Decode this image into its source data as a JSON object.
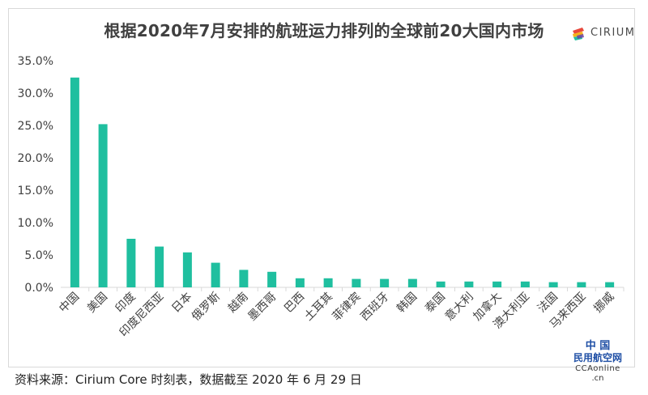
{
  "title": "根据2020年7月安排的航班运力排列的全球前20大国内市场",
  "logo": {
    "text": "CIRIUM",
    "icon": "cirium-logo-icon"
  },
  "source": "资料来源：Cirium Core 时刻表，数据截至 2020 年 6 月 29 日",
  "watermark": {
    "line1": "中 国",
    "line2": "民用航空网",
    "line3": "CCAonline",
    "line4": ".cn"
  },
  "colors": {
    "bar": "#1fbf9f",
    "axis_text": "#404040",
    "grid": "#d9d9d9"
  },
  "chart_data": {
    "type": "bar",
    "title": "根据2020年7月安排的航班运力排列的全球前20大国内市场",
    "xlabel": "",
    "ylabel": "",
    "ylim": [
      0,
      35
    ],
    "yticks": [
      "0.0%",
      "5.0%",
      "10.0%",
      "15.0%",
      "20.0%",
      "25.0%",
      "30.0%",
      "35.0%"
    ],
    "grid": false,
    "legend": "none",
    "categories": [
      "中国",
      "美国",
      "印度",
      "印度尼西亚",
      "日本",
      "俄罗斯",
      "越南",
      "墨西哥",
      "巴西",
      "土耳其",
      "菲律宾",
      "西班牙",
      "韩国",
      "泰国",
      "意大利",
      "加拿大",
      "澳大利亚",
      "法国",
      "马来西亚",
      "挪威"
    ],
    "values": [
      32.4,
      25.2,
      7.5,
      6.3,
      5.4,
      3.8,
      2.7,
      2.4,
      1.4,
      1.4,
      1.3,
      1.3,
      1.3,
      0.9,
      0.9,
      0.9,
      0.9,
      0.8,
      0.8,
      0.8
    ]
  }
}
